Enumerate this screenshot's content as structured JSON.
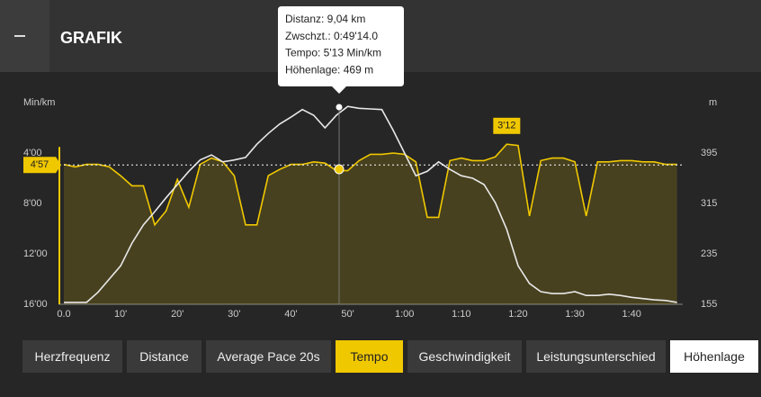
{
  "header": {
    "title": "GRAFIK"
  },
  "chart_data": {
    "type": "line",
    "y_label": "Min/km",
    "y2_label": "m",
    "x": [
      0,
      2,
      4,
      6,
      8,
      10,
      12,
      14,
      16,
      18,
      20,
      22,
      24,
      26,
      28,
      30,
      32,
      34,
      36,
      38,
      40,
      42,
      44,
      46,
      48,
      50,
      52,
      54,
      56,
      58,
      60,
      62,
      64,
      66,
      68,
      70,
      72,
      74,
      76,
      78,
      80,
      82,
      84,
      86,
      88,
      90,
      92,
      94,
      96,
      98,
      100,
      102,
      104,
      106,
      108
    ],
    "series": [
      {
        "name": "Tempo",
        "color": "#f0c800",
        "values": [
          4.9,
          5.1,
          4.9,
          4.9,
          5.1,
          5.8,
          6.6,
          6.6,
          9.7,
          8.6,
          6.1,
          8.3,
          4.9,
          4.4,
          4.7,
          5.8,
          9.7,
          9.7,
          5.8,
          5.3,
          4.9,
          4.9,
          4.7,
          4.8,
          5.4,
          5.4,
          4.6,
          4.1,
          4.1,
          4.0,
          4.1,
          4.7,
          9.1,
          9.1,
          4.6,
          4.4,
          4.6,
          4.6,
          4.3,
          3.3,
          3.4,
          9.0,
          4.6,
          4.4,
          4.4,
          4.7,
          9.0,
          4.7,
          4.7,
          4.6,
          4.6,
          4.7,
          4.7,
          4.9,
          4.9
        ]
      },
      {
        "name": "Höhenlage",
        "color": "#e8e8e8",
        "axis": "y2",
        "values": [
          158,
          158,
          158,
          174,
          195,
          216,
          252,
          281,
          302,
          324,
          345,
          366,
          384,
          392,
          381,
          384,
          388,
          409,
          426,
          441,
          452,
          464,
          455,
          435,
          455,
          469,
          466,
          465,
          464,
          431,
          395,
          359,
          366,
          381,
          369,
          359,
          355,
          345,
          316,
          274,
          216,
          188,
          175,
          172,
          172,
          175,
          169,
          169,
          171,
          169,
          166,
          164,
          162,
          161,
          158
        ]
      }
    ],
    "xlim": [
      0,
      109
    ],
    "xticks": [
      {
        "value": 0,
        "label": "0.0"
      },
      {
        "value": 10,
        "label": "10'"
      },
      {
        "value": 20,
        "label": "20'"
      },
      {
        "value": 30,
        "label": "30'"
      },
      {
        "value": 40,
        "label": "40'"
      },
      {
        "value": 50,
        "label": "50'"
      },
      {
        "value": 60,
        "label": "1:00"
      },
      {
        "value": 70,
        "label": "1:10"
      },
      {
        "value": 80,
        "label": "1:20"
      },
      {
        "value": 90,
        "label": "1:30"
      },
      {
        "value": 100,
        "label": "1:40"
      }
    ],
    "ylim": [
      16,
      0
    ],
    "yticks": [
      {
        "value": 4,
        "label": "4'00"
      },
      {
        "value": 8,
        "label": "8'00"
      },
      {
        "value": 12,
        "label": "12'00"
      },
      {
        "value": 16,
        "label": "16'00"
      }
    ],
    "y2lim": [
      155,
      475
    ],
    "y2ticks": [
      395,
      315,
      235,
      155
    ],
    "grid": false,
    "average": {
      "value": 4.95,
      "label": "4'57"
    },
    "maximum": {
      "x": 78,
      "value": 3.2,
      "label": "3'12"
    }
  },
  "tooltip": [
    "Distanz: 9,04 km",
    "Zwschzt.: 0:49'14.0",
    "Tempo: 5'13 Min/km",
    "Höhenlage: 469 m"
  ],
  "tabs": [
    "Herzfrequenz",
    "Distance",
    "Average Pace 20s",
    "Tempo",
    "Geschwindigkeit",
    "Leistungsunterschied",
    "Höhenlage"
  ]
}
